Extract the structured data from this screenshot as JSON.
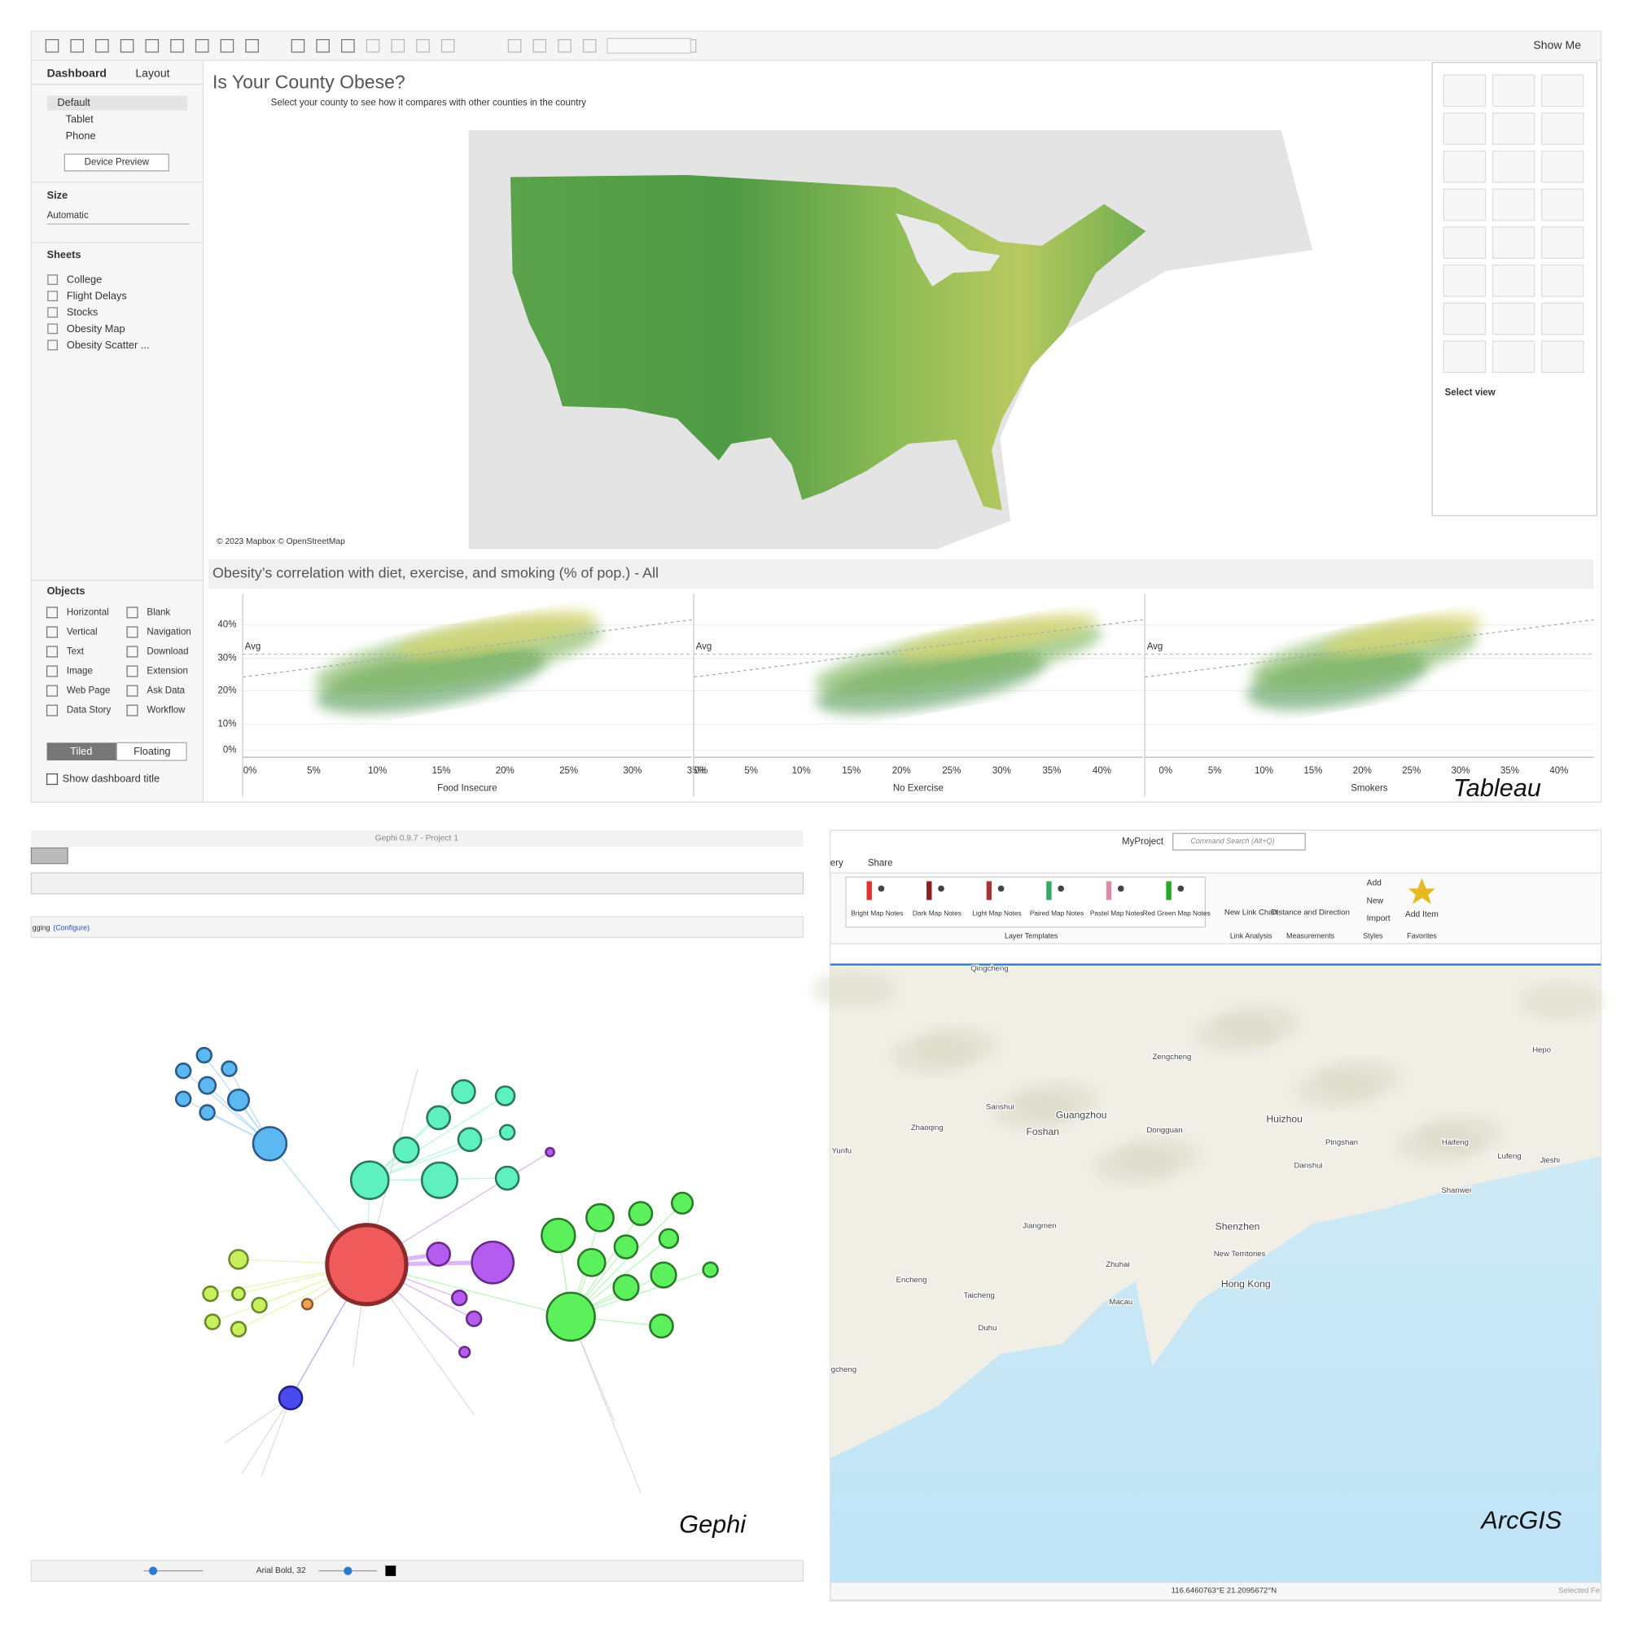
{
  "tableau": {
    "label": "Tableau",
    "show_me": "Show Me",
    "tabs": [
      "Dashboard",
      "Layout"
    ],
    "devices": [
      "Default",
      "Tablet",
      "Phone"
    ],
    "device_preview": "Device Preview",
    "size_title": "Size",
    "size_value": "Automatic",
    "sheets_title": "Sheets",
    "sheets": [
      "College",
      "Flight Delays",
      "Stocks",
      "Obesity Map",
      "Obesity Scatter ..."
    ],
    "objects_title": "Objects",
    "objects": [
      "Horizontal",
      "Blank",
      "Vertical",
      "Navigation",
      "Text",
      "Download",
      "Image",
      "Extension",
      "Web Page",
      "Ask Data",
      "Data Story",
      "Workflow"
    ],
    "layout_modes": [
      "Tiled",
      "Floating"
    ],
    "show_title": "Show dashboard title",
    "title": "Is Your County Obese?",
    "subtitle": "Select your county to see how it compares with other counties in the country",
    "map_credit": "© 2023 Mapbox © OpenStreetMap",
    "select_view": "Select view",
    "scatter_title": "Obesity’s correlation with diet, exercise, and smoking (% of pop.) - All",
    "avg": "Avg",
    "yticks": [
      "40%",
      "30%",
      "20%",
      "10%",
      "0%"
    ],
    "panels": [
      {
        "xlabel": "Food Insecure",
        "xticks": [
          "0%",
          "5%",
          "10%",
          "15%",
          "20%",
          "25%",
          "30%",
          "35%"
        ]
      },
      {
        "xlabel": "No Exercise",
        "xticks": [
          "0%",
          "5%",
          "10%",
          "15%",
          "20%",
          "25%",
          "30%",
          "35%",
          "40%"
        ]
      },
      {
        "xlabel": "Smokers",
        "xticks": [
          "0%",
          "5%",
          "10%",
          "15%",
          "20%",
          "25%",
          "30%",
          "35%",
          "40%"
        ]
      }
    ]
  },
  "gephi": {
    "label": "Gephi",
    "window_title": "Gephi 0.9.7 - Project 1",
    "panel_text": "gging",
    "configure": "(Configure)",
    "font": "Arial Bold, 32"
  },
  "arcgis": {
    "label": "ArcGIS",
    "project": "MyProject",
    "search": "Command Search (Alt+Q)",
    "tabs": [
      "ery",
      "Share"
    ],
    "templates": [
      "Bright Map Notes",
      "Dark Map Notes",
      "Light Map Notes",
      "Paired Map Notes",
      "Pastel Map Notes",
      "Red Green Map Notes"
    ],
    "templates_group": "Layer Templates",
    "link_chart": "New Link Chart",
    "link_group": "Link Analysis",
    "distance": "Distance and Direction",
    "measure_group": "Measurements",
    "style_items": [
      "Add",
      "New",
      "Import"
    ],
    "styles_group": "Styles",
    "add_item": "Add Item",
    "favorites_group": "Favorites",
    "places": [
      "Qingcheng",
      "Zengcheng",
      "Sanshui",
      "Guangzhou",
      "Zhaoqing",
      "Foshan",
      "Dongguan",
      "Huizhou",
      "Yunfu",
      "Pingshan",
      "Haifeng",
      "Danshui",
      "Lufeng",
      "Jieshi",
      "Hepo",
      "Shanwei",
      "Shenzhen",
      "Jiangmen",
      "New Territories",
      "Zhuhai",
      "Hong Kong",
      "Encheng",
      "Taicheng",
      "Macau",
      "Duhu",
      "gcheng"
    ],
    "coords": "116.6460763°E 21.2095672°N",
    "selected": "Selected Fe"
  }
}
